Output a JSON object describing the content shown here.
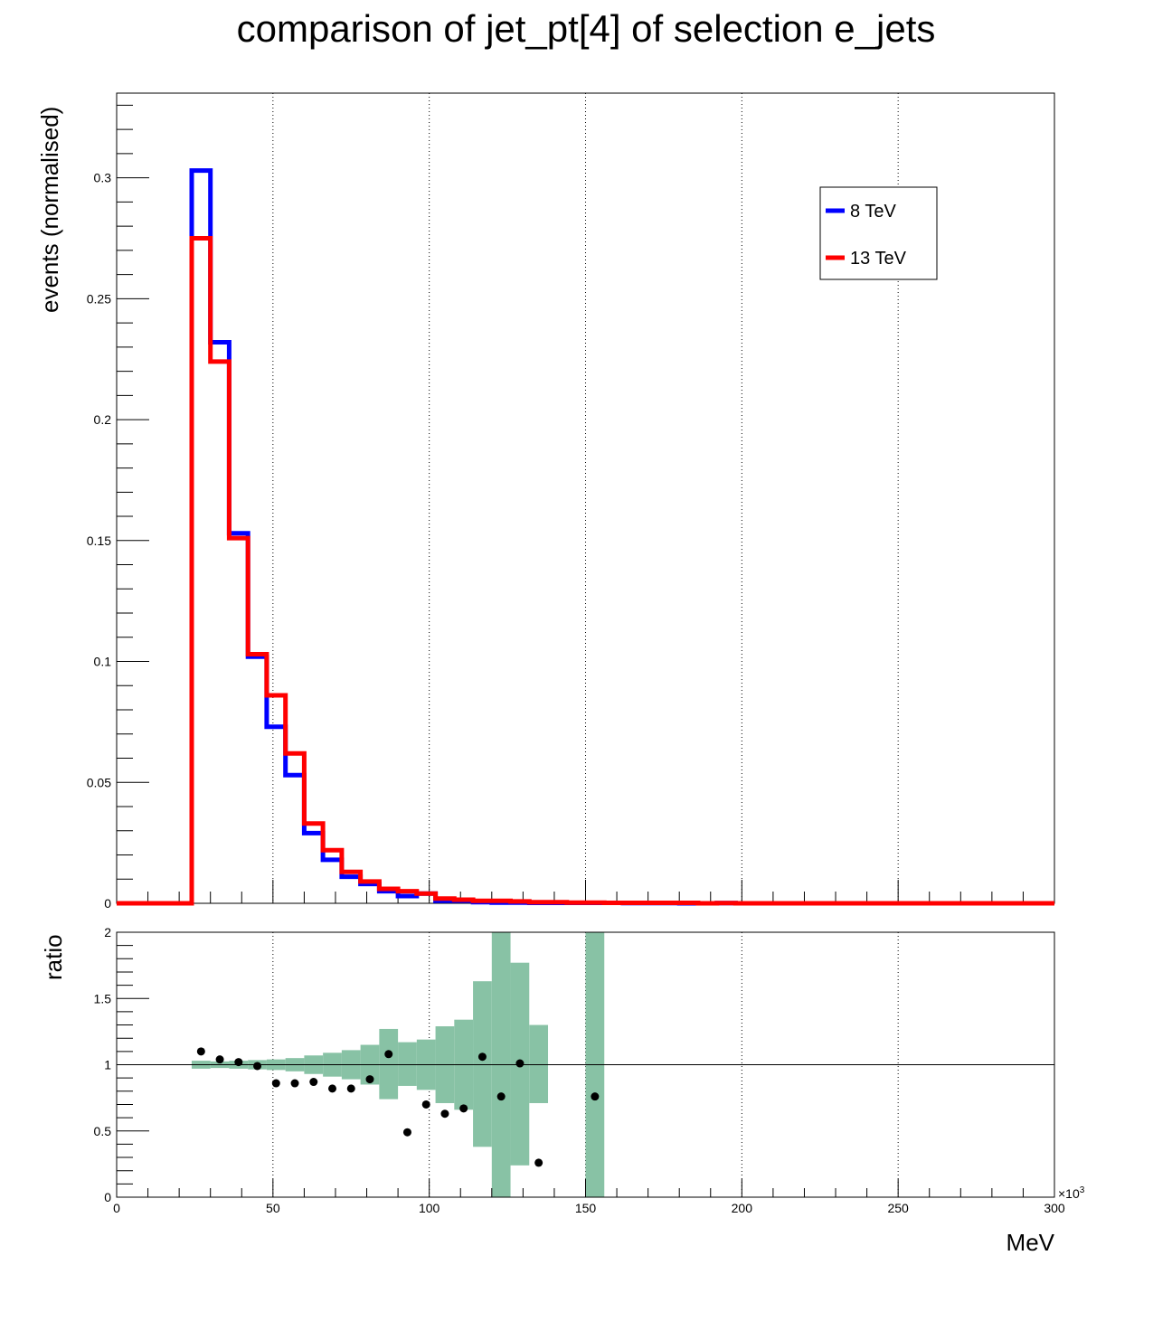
{
  "title": "comparison of jet_pt[4] of selection e_jets",
  "chart_data": [
    {
      "type": "step",
      "panel": "main",
      "ylabel": "events (normalised)",
      "xlim": [
        0,
        300000
      ],
      "ylim": [
        0,
        0.335
      ],
      "yticks": [
        0,
        0.05,
        0.1,
        0.15,
        0.2,
        0.25,
        0.3
      ],
      "ytick_labels": [
        "0",
        "0.05",
        "0.1",
        "0.15",
        "0.2",
        "0.25",
        "0.3"
      ],
      "grid_x": true,
      "legend_position": "top-right",
      "bin_width": 6000,
      "series": [
        {
          "name": "8 TeV",
          "color": "#0000ff",
          "values": [
            0,
            0,
            0,
            0,
            0.303,
            0.232,
            0.153,
            0.102,
            0.073,
            0.053,
            0.029,
            0.018,
            0.011,
            0.008,
            0.005,
            0.003,
            0.004,
            0.001,
            0.001,
            0.0005,
            0.0003,
            0.0003,
            0.0002,
            0.0002,
            0.0002,
            0.0002,
            0.0002,
            0.0001,
            0.0001,
            0.0001,
            0,
            0,
            0.0001,
            0,
            0,
            0,
            0,
            0,
            0,
            0,
            0,
            0,
            0,
            0,
            0,
            0,
            0,
            0,
            0,
            0
          ]
        },
        {
          "name": "13 TeV",
          "color": "#ff0000",
          "values": [
            0,
            0,
            0,
            0,
            0.275,
            0.224,
            0.151,
            0.103,
            0.086,
            0.062,
            0.033,
            0.022,
            0.013,
            0.009,
            0.006,
            0.005,
            0.004,
            0.002,
            0.0015,
            0.001,
            0.001,
            0.0008,
            0.0005,
            0.0005,
            0.0003,
            0.0003,
            0.0002,
            0.0002,
            0.0002,
            0.0002,
            0.0002,
            0,
            0.0001,
            0,
            0,
            0,
            0,
            0,
            0,
            0,
            0,
            0,
            0,
            0,
            0,
            0,
            0,
            0,
            0,
            0
          ]
        }
      ]
    },
    {
      "type": "scatter",
      "panel": "ratio",
      "ylabel": "ratio",
      "xlabel": "MeV",
      "x_multiplier_label": "×10",
      "x_multiplier_exp": "3",
      "xlim": [
        0,
        300000
      ],
      "ylim": [
        0,
        2
      ],
      "xticks": [
        0,
        50000,
        100000,
        150000,
        200000,
        250000,
        300000
      ],
      "xtick_labels": [
        "0",
        "50",
        "100",
        "150",
        "200",
        "250",
        "300"
      ],
      "yticks": [
        0,
        0.5,
        1,
        1.5,
        2
      ],
      "ytick_labels": [
        "0",
        "0.5",
        "1",
        "1.5",
        "2"
      ],
      "reference_line": 1,
      "band_color": "#88c2a5",
      "point_color": "#000000",
      "band": [
        {
          "x0": 24000,
          "x1": 30000,
          "lo": 0.97,
          "hi": 1.03
        },
        {
          "x0": 30000,
          "x1": 36000,
          "lo": 0.975,
          "hi": 1.025
        },
        {
          "x0": 36000,
          "x1": 42000,
          "lo": 0.97,
          "hi": 1.03
        },
        {
          "x0": 42000,
          "x1": 48000,
          "lo": 0.965,
          "hi": 1.035
        },
        {
          "x0": 48000,
          "x1": 54000,
          "lo": 0.96,
          "hi": 1.04
        },
        {
          "x0": 54000,
          "x1": 60000,
          "lo": 0.95,
          "hi": 1.05
        },
        {
          "x0": 60000,
          "x1": 66000,
          "lo": 0.93,
          "hi": 1.07
        },
        {
          "x0": 66000,
          "x1": 72000,
          "lo": 0.91,
          "hi": 1.09
        },
        {
          "x0": 72000,
          "x1": 78000,
          "lo": 0.89,
          "hi": 1.11
        },
        {
          "x0": 78000,
          "x1": 84000,
          "lo": 0.85,
          "hi": 1.15
        },
        {
          "x0": 84000,
          "x1": 90000,
          "lo": 0.74,
          "hi": 1.27
        },
        {
          "x0": 90000,
          "x1": 96000,
          "lo": 0.84,
          "hi": 1.17
        },
        {
          "x0": 96000,
          "x1": 102000,
          "lo": 0.81,
          "hi": 1.19
        },
        {
          "x0": 102000,
          "x1": 108000,
          "lo": 0.71,
          "hi": 1.29
        },
        {
          "x0": 108000,
          "x1": 114000,
          "lo": 0.66,
          "hi": 1.34
        },
        {
          "x0": 114000,
          "x1": 120000,
          "lo": 0.38,
          "hi": 1.63
        },
        {
          "x0": 120000,
          "x1": 126000,
          "lo": 0,
          "hi": 2
        },
        {
          "x0": 126000,
          "x1": 132000,
          "lo": 0.24,
          "hi": 1.77
        },
        {
          "x0": 132000,
          "x1": 138000,
          "lo": 0.71,
          "hi": 1.3
        },
        {
          "x0": 150000,
          "x1": 156000,
          "lo": 0,
          "hi": 2
        }
      ],
      "points": [
        {
          "x": 27000,
          "y": 1.1
        },
        {
          "x": 33000,
          "y": 1.04
        },
        {
          "x": 39000,
          "y": 1.02
        },
        {
          "x": 45000,
          "y": 0.99
        },
        {
          "x": 51000,
          "y": 0.86
        },
        {
          "x": 57000,
          "y": 0.86
        },
        {
          "x": 63000,
          "y": 0.87
        },
        {
          "x": 69000,
          "y": 0.82
        },
        {
          "x": 75000,
          "y": 0.82
        },
        {
          "x": 81000,
          "y": 0.89
        },
        {
          "x": 87000,
          "y": 1.08
        },
        {
          "x": 93000,
          "y": 0.49
        },
        {
          "x": 99000,
          "y": 0.7
        },
        {
          "x": 105000,
          "y": 0.63
        },
        {
          "x": 111000,
          "y": 0.67
        },
        {
          "x": 117000,
          "y": 1.06
        },
        {
          "x": 123000,
          "y": 0.76
        },
        {
          "x": 129000,
          "y": 1.01
        },
        {
          "x": 135000,
          "y": 0.26
        },
        {
          "x": 153000,
          "y": 0.76
        }
      ]
    }
  ]
}
